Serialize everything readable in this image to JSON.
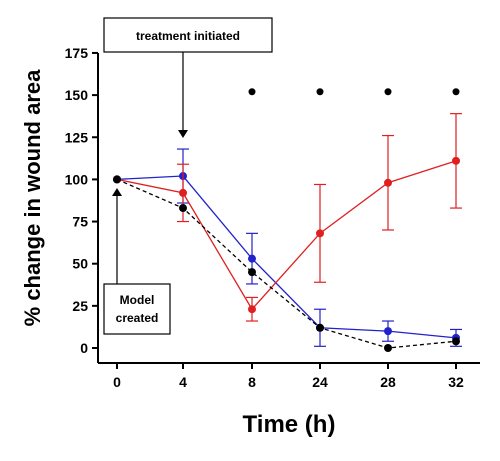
{
  "chart_data": {
    "type": "line",
    "title": "",
    "xlabel": "Time (h)",
    "ylabel": "% change in wound area",
    "categories": [
      "0",
      "4",
      "8",
      "24",
      "28",
      "32"
    ],
    "yticks": [
      "0",
      "25",
      "50",
      "75",
      "100",
      "125",
      "150",
      "175"
    ],
    "ylim": [
      0,
      175
    ],
    "grid": false,
    "legend": "none",
    "series": [
      {
        "color": "#2222cc",
        "line_style": "solid",
        "values": [
          100,
          102,
          53,
          12,
          10,
          6
        ],
        "error": [
          0,
          16,
          15,
          11,
          6,
          5
        ]
      },
      {
        "color": "#e02020",
        "line_style": "solid",
        "values": [
          100,
          92,
          23,
          68,
          98,
          111
        ],
        "error": [
          0,
          17,
          7,
          29,
          28,
          28
        ]
      },
      {
        "color": "#000000",
        "line_style": "dashed",
        "values": [
          100,
          83,
          45,
          12,
          0,
          4
        ],
        "error": [
          0,
          0,
          0,
          0,
          0,
          0
        ]
      }
    ],
    "significance_markers": {
      "categories": [
        "8",
        "24",
        "28",
        "32"
      ],
      "y": 152,
      "symbol": "●"
    },
    "annotations": [
      {
        "text": "treatment initiated",
        "points_to_category": "4"
      },
      {
        "text": "Model\ncreated",
        "points_to_category": "0"
      }
    ]
  }
}
